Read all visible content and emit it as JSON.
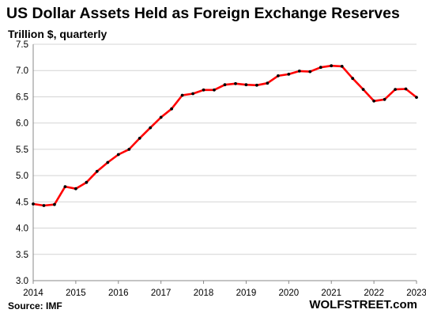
{
  "chart_data": {
    "type": "line",
    "title": "US Dollar Assets Held as Foreign Exchange Reserves",
    "subtitle": "Trillion $, quarterly",
    "source": "Source: IMF",
    "brand": "WOLFSTREET.com",
    "xlabel": "",
    "ylabel": "",
    "ylim": [
      3.0,
      7.5
    ],
    "yticks": [
      "3.0",
      "3.5",
      "4.0",
      "4.5",
      "5.0",
      "5.5",
      "6.0",
      "6.5",
      "7.0",
      "7.5"
    ],
    "xlim": [
      2014,
      2023
    ],
    "xticks": [
      "2014",
      "2015",
      "2016",
      "2017",
      "2018",
      "2019",
      "2020",
      "2021",
      "2022",
      "2023"
    ],
    "grid": "horizontal",
    "legend": "none",
    "line_color": "#ff0000",
    "marker_color": "#000000",
    "x": [
      2014.0,
      2014.25,
      2014.5,
      2014.75,
      2015.0,
      2015.25,
      2015.5,
      2015.75,
      2016.0,
      2016.25,
      2016.5,
      2016.75,
      2017.0,
      2017.25,
      2017.5,
      2017.75,
      2018.0,
      2018.25,
      2018.5,
      2018.75,
      2019.0,
      2019.25,
      2019.5,
      2019.75,
      2020.0,
      2020.25,
      2020.5,
      2020.75,
      2021.0,
      2021.25,
      2021.5,
      2021.75,
      2022.0,
      2022.25,
      2022.5,
      2022.75,
      2023.0
    ],
    "values": [
      4.46,
      4.43,
      4.45,
      4.79,
      4.75,
      4.87,
      5.08,
      5.25,
      5.4,
      5.5,
      5.71,
      5.91,
      6.11,
      6.27,
      6.53,
      6.56,
      6.63,
      6.63,
      6.73,
      6.75,
      6.73,
      6.72,
      6.76,
      6.9,
      6.93,
      6.99,
      6.98,
      7.06,
      7.09,
      7.08,
      6.85,
      6.64,
      6.42,
      6.45,
      6.64,
      6.65,
      6.49
    ]
  }
}
